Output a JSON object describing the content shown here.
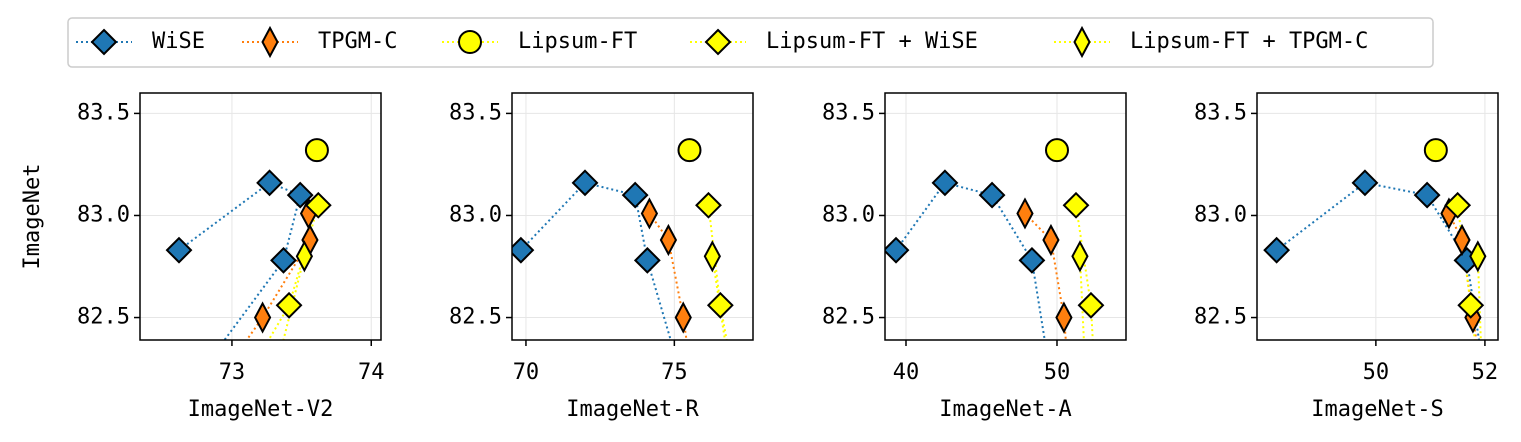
{
  "chart_data": [
    {
      "type": "line",
      "xlabel": "ImageNet-V2",
      "ylabel": "ImageNet",
      "xlim": [
        72.34,
        74.07
      ],
      "xticks": [
        73,
        74
      ],
      "ylim": [
        82.39,
        83.6
      ],
      "yticks": [
        82.5,
        {
          "value": 83.0,
          "label": "83.0"
        },
        83.5
      ],
      "grid": true,
      "series": [
        {
          "name": "WiSE",
          "color": "#1f77b4",
          "marker": "D",
          "x": [
            72.62,
            73.27,
            73.49,
            73.37,
            72.74
          ],
          "values": [
            82.83,
            83.16,
            83.1,
            82.78,
            82.2
          ]
        },
        {
          "name": "TPGM-C",
          "color": "#ff7f0e",
          "marker": "d",
          "x": [
            73.55,
            73.56,
            73.22,
            72.91
          ],
          "values": [
            83.01,
            82.88,
            82.5,
            82.2
          ]
        },
        {
          "name": "Lipsum-FT",
          "color": "#ffff00",
          "marker": "o",
          "x": [
            73.61
          ],
          "values": [
            83.32
          ]
        },
        {
          "name": "Lipsum-FT + WiSE",
          "color": "#ffff00",
          "marker": "D",
          "x": [
            73.62,
            73.41,
            73.1
          ],
          "values": [
            83.05,
            82.56,
            82.2
          ]
        },
        {
          "name": "Lipsum-FT + TPGM-C",
          "color": "#ffff00",
          "marker": "d",
          "x": [
            73.52,
            73.3
          ],
          "values": [
            82.8,
            82.2
          ]
        }
      ]
    },
    {
      "type": "line",
      "xlabel": "ImageNet-R",
      "xlim": [
        69.53,
        77.65
      ],
      "xticks": [
        70,
        75
      ],
      "ylim": [
        82.39,
        83.6
      ],
      "yticks": [
        82.5,
        {
          "value": 83.0,
          "label": "83.0"
        },
        83.5
      ],
      "grid": true,
      "series": [
        {
          "name": "WiSE",
          "color": "#1f77b4",
          "marker": "D",
          "x": [
            69.83,
            71.99,
            73.68,
            74.09,
            75.26
          ],
          "values": [
            82.83,
            83.16,
            83.1,
            82.78,
            82.2
          ]
        },
        {
          "name": "TPGM-C",
          "color": "#ff7f0e",
          "marker": "d",
          "x": [
            74.16,
            74.8,
            75.3,
            75.6
          ],
          "values": [
            83.01,
            82.88,
            82.5,
            82.2
          ]
        },
        {
          "name": "Lipsum-FT",
          "color": "#ffff00",
          "marker": "o",
          "x": [
            75.51
          ],
          "values": [
            83.32
          ]
        },
        {
          "name": "Lipsum-FT + WiSE",
          "color": "#ffff00",
          "marker": "D",
          "x": [
            76.15,
            76.55,
            77.0
          ],
          "values": [
            83.05,
            82.56,
            82.2
          ]
        },
        {
          "name": "Lipsum-FT + TPGM-C",
          "color": "#ffff00",
          "marker": "d",
          "x": [
            76.28,
            76.9
          ],
          "values": [
            82.8,
            82.2
          ]
        }
      ]
    },
    {
      "type": "line",
      "xlabel": "ImageNet-A",
      "xlim": [
        38.61,
        54.57
      ],
      "xticks": [
        40,
        50
      ],
      "ylim": [
        82.39,
        83.6
      ],
      "yticks": [
        82.5,
        {
          "value": 83.0,
          "label": "83.0"
        },
        83.5
      ],
      "grid": true,
      "series": [
        {
          "name": "WiSE",
          "color": "#1f77b4",
          "marker": "D",
          "x": [
            39.34,
            42.58,
            45.7,
            48.34,
            49.6
          ],
          "values": [
            82.83,
            83.16,
            83.1,
            82.78,
            82.2
          ]
        },
        {
          "name": "TPGM-C",
          "color": "#ff7f0e",
          "marker": "d",
          "x": [
            47.88,
            49.6,
            50.46,
            50.8
          ],
          "values": [
            83.01,
            82.88,
            82.5,
            82.2
          ]
        },
        {
          "name": "Lipsum-FT",
          "color": "#ffff00",
          "marker": "o",
          "x": [
            50.0
          ],
          "values": [
            83.32
          ]
        },
        {
          "name": "Lipsum-FT + WiSE",
          "color": "#ffff00",
          "marker": "D",
          "x": [
            51.26,
            52.25,
            52.5
          ],
          "values": [
            83.05,
            82.56,
            82.2
          ]
        },
        {
          "name": "Lipsum-FT + TPGM-C",
          "color": "#ffff00",
          "marker": "d",
          "x": [
            51.52,
            51.9
          ],
          "values": [
            82.8,
            82.2
          ]
        }
      ]
    },
    {
      "type": "line",
      "xlabel": "ImageNet-S",
      "xlim": [
        47.82,
        52.24
      ],
      "xticks": [
        50,
        52
      ],
      "ylim": [
        82.39,
        83.6
      ],
      "yticks": [
        82.5,
        {
          "value": 83.0,
          "label": "83.0"
        },
        83.5
      ],
      "grid": true,
      "series": [
        {
          "name": "WiSE",
          "color": "#1f77b4",
          "marker": "D",
          "x": [
            48.18,
            49.8,
            50.94,
            51.67,
            52.0
          ],
          "values": [
            82.83,
            83.16,
            83.1,
            82.78,
            82.2
          ]
        },
        {
          "name": "TPGM-C",
          "color": "#ff7f0e",
          "marker": "d",
          "x": [
            51.34,
            51.58,
            51.78,
            51.95
          ],
          "values": [
            83.01,
            82.88,
            82.5,
            82.2
          ]
        },
        {
          "name": "Lipsum-FT",
          "color": "#ffff00",
          "marker": "o",
          "x": [
            51.1
          ],
          "values": [
            83.32
          ]
        },
        {
          "name": "Lipsum-FT + WiSE",
          "color": "#ffff00",
          "marker": "D",
          "x": [
            51.5,
            51.74,
            51.9
          ],
          "values": [
            83.05,
            82.56,
            82.2
          ]
        },
        {
          "name": "Lipsum-FT + TPGM-C",
          "color": "#ffff00",
          "marker": "d",
          "x": [
            51.87,
            51.95
          ],
          "values": [
            82.8,
            82.2
          ]
        }
      ]
    }
  ]
}
